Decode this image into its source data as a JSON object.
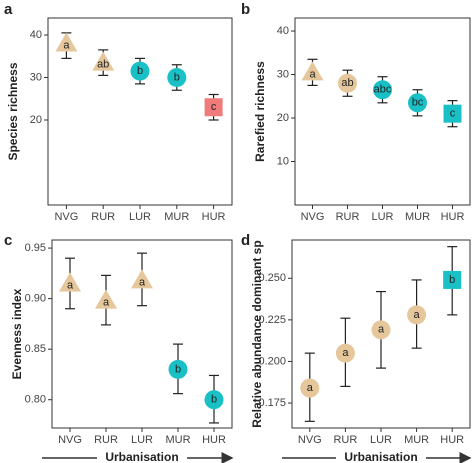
{
  "chart_data": [
    {
      "type": "errorbar",
      "panel": "a",
      "ylabel": "Species richness",
      "categories": [
        "NVG",
        "RUR",
        "LUR",
        "MUR",
        "HUR"
      ],
      "values": [
        38,
        33.5,
        31.5,
        30,
        23
      ],
      "lower": [
        34.5,
        30.5,
        28.5,
        27,
        20
      ],
      "upper": [
        40.5,
        36.5,
        34.5,
        33,
        26
      ],
      "letters": [
        "a",
        "ab",
        "b",
        "b",
        "c"
      ],
      "markers": [
        "triangle",
        "triangle",
        "circle",
        "circle",
        "square"
      ],
      "colors": [
        "#e6c79c",
        "#e6c79c",
        "#19c1c7",
        "#19c1c7",
        "#f07b7b"
      ],
      "ylim": [
        0,
        44
      ],
      "yticks": [
        20,
        30,
        40
      ]
    },
    {
      "type": "errorbar",
      "panel": "b",
      "ylabel": "Rarefied richness",
      "categories": [
        "NVG",
        "RUR",
        "LUR",
        "MUR",
        "HUR"
      ],
      "values": [
        30.5,
        28,
        26.5,
        23.5,
        21
      ],
      "lower": [
        27.5,
        25,
        23.5,
        20.5,
        18
      ],
      "upper": [
        33.5,
        31,
        29.5,
        26.5,
        24
      ],
      "letters": [
        "a",
        "ab",
        "abc",
        "bc",
        "c"
      ],
      "markers": [
        "triangle",
        "circle",
        "circle",
        "circle",
        "square"
      ],
      "colors": [
        "#e6c79c",
        "#e6c79c",
        "#19c1c7",
        "#19c1c7",
        "#19c1c7"
      ],
      "ylim": [
        0,
        43
      ],
      "yticks": [
        10,
        20,
        30,
        40
      ]
    },
    {
      "type": "errorbar",
      "panel": "c",
      "ylabel": "Evenness index",
      "xlabel": "Urbanisation",
      "categories": [
        "NVG",
        "RUR",
        "LUR",
        "MUR",
        "HUR"
      ],
      "values": [
        0.915,
        0.898,
        0.918,
        0.83,
        0.8
      ],
      "lower": [
        0.89,
        0.874,
        0.893,
        0.806,
        0.777
      ],
      "upper": [
        0.94,
        0.923,
        0.945,
        0.855,
        0.824
      ],
      "letters": [
        "a",
        "a",
        "a",
        "b",
        "b"
      ],
      "markers": [
        "triangle",
        "triangle",
        "triangle",
        "circle",
        "circle"
      ],
      "colors": [
        "#e6c79c",
        "#e6c79c",
        "#e6c79c",
        "#19c1c7",
        "#19c1c7"
      ],
      "ylim": [
        0.772,
        0.958
      ],
      "yticks": [
        {
          "value": 0.8,
          "label": "0.80"
        },
        0.85,
        {
          "value": 0.9,
          "label": "0.90"
        },
        0.95
      ]
    },
    {
      "type": "errorbar",
      "panel": "d",
      "ylabel": "Relative abundance dominant sp",
      "xlabel": "Urbanisation",
      "categories": [
        "NVG",
        "RUR",
        "LUR",
        "MUR",
        "HUR"
      ],
      "values": [
        0.184,
        0.205,
        0.219,
        0.228,
        0.249
      ],
      "lower": [
        0.164,
        0.185,
        0.196,
        0.208,
        0.228
      ],
      "upper": [
        0.205,
        0.226,
        0.242,
        0.249,
        0.269
      ],
      "letters": [
        "a",
        "a",
        "a",
        "a",
        "b"
      ],
      "markers": [
        "circle",
        "circle",
        "circle",
        "circle",
        "square"
      ],
      "colors": [
        "#e6c79c",
        "#e6c79c",
        "#e6c79c",
        "#e6c79c",
        "#19c1c7"
      ],
      "ylim": [
        0.16,
        0.273
      ],
      "yticks": [
        0.175,
        {
          "value": 0.2,
          "label": "0.200"
        },
        0.225,
        {
          "value": 0.25,
          "label": "0.250"
        }
      ]
    }
  ]
}
